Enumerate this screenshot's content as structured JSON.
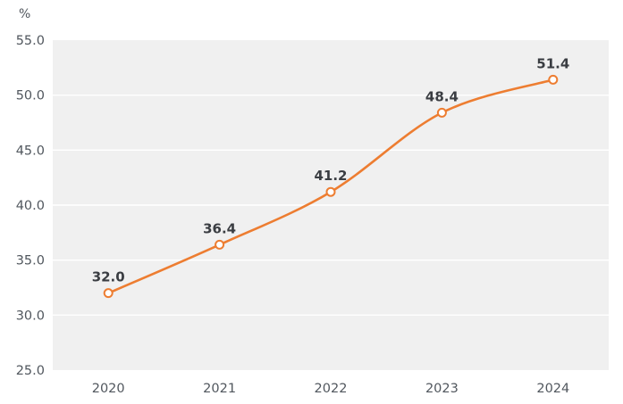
{
  "chart_data": {
    "type": "line",
    "title": "",
    "unit_label": "%",
    "categories": [
      "2020",
      "2021",
      "2022",
      "2023",
      "2024"
    ],
    "series": [
      {
        "name": "share-percent",
        "values": [
          32.0,
          36.4,
          41.2,
          48.4,
          51.4
        ],
        "data_labels": [
          "32.0",
          "36.4",
          "41.2",
          "48.4",
          "51.4"
        ],
        "color": "#ED7D31"
      }
    ],
    "xlabel": "",
    "ylabel": "%",
    "ylim": [
      25,
      55
    ],
    "y_ticks": [
      25,
      30,
      35,
      40,
      45,
      50,
      55
    ],
    "y_tick_labels": [
      "25.0",
      "30.0",
      "35.0",
      "40.0",
      "45.0",
      "50.0",
      "55.0"
    ],
    "grid": true,
    "legend_position": "none",
    "line_style": "smoothed",
    "marker": "open-circle",
    "colors": {
      "line": "#ED7D31",
      "marker_fill": "#FFFFFF",
      "plot_bg": "#F0F0F0",
      "grid": "#FFFFFF",
      "tick_text": "#51575E",
      "label_text": "#3A3D42",
      "canvas_bg": "#FFFFFF"
    }
  }
}
